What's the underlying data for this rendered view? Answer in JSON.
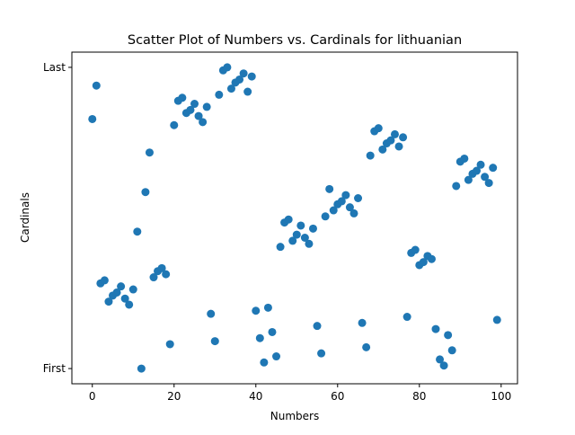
{
  "chart_data": {
    "type": "scatter",
    "title": "Scatter Plot of Numbers vs. Cardinals for lithuanian",
    "x_label": "Numbers",
    "y_label": "Cardinals",
    "x": [
      0,
      1,
      2,
      3,
      4,
      5,
      6,
      7,
      8,
      9,
      10,
      11,
      12,
      13,
      14,
      15,
      16,
      17,
      18,
      19,
      20,
      21,
      22,
      23,
      24,
      25,
      26,
      27,
      28,
      29,
      30,
      31,
      32,
      33,
      34,
      35,
      36,
      37,
      38,
      39,
      40,
      41,
      42,
      43,
      44,
      45,
      46,
      47,
      48,
      49,
      50,
      51,
      52,
      53,
      54,
      55,
      56,
      57,
      58,
      59,
      60,
      61,
      62,
      63,
      64,
      65,
      66,
      67,
      68,
      69,
      70,
      71,
      72,
      73,
      74,
      75,
      76,
      77,
      78,
      79,
      80,
      81,
      82,
      83,
      84,
      85,
      86,
      87,
      88,
      89,
      90,
      91,
      92,
      93,
      94,
      95,
      96,
      97,
      98,
      99
    ],
    "values": [
      82,
      93,
      28,
      29,
      22,
      24,
      25,
      27,
      23,
      21,
      26,
      45,
      0,
      58,
      71,
      30,
      32,
      33,
      31,
      8,
      80,
      88,
      89,
      84,
      85,
      87,
      83,
      81,
      86,
      18,
      9,
      90,
      98,
      99,
      92,
      94,
      95,
      97,
      91,
      96,
      19,
      10,
      2,
      20,
      12,
      4,
      40,
      48,
      49,
      42,
      44,
      47,
      43,
      41,
      46,
      14,
      5,
      50,
      59,
      52,
      54,
      55,
      57,
      53,
      51,
      56,
      15,
      7,
      70,
      78,
      79,
      72,
      74,
      75,
      77,
      73,
      76,
      17,
      38,
      39,
      34,
      35,
      37,
      36,
      13,
      3,
      1,
      11,
      6,
      60,
      68,
      69,
      62,
      64,
      65,
      67,
      63,
      61,
      66,
      16
    ],
    "color": "#1f77b4",
    "xlim": [
      -5,
      104
    ],
    "ylim": [
      -5,
      104
    ],
    "xticks": [
      0,
      20,
      40,
      60,
      80,
      100
    ],
    "yticks": [
      {
        "value": 0,
        "label": "First"
      },
      {
        "value": 99,
        "label": "Last"
      }
    ]
  }
}
